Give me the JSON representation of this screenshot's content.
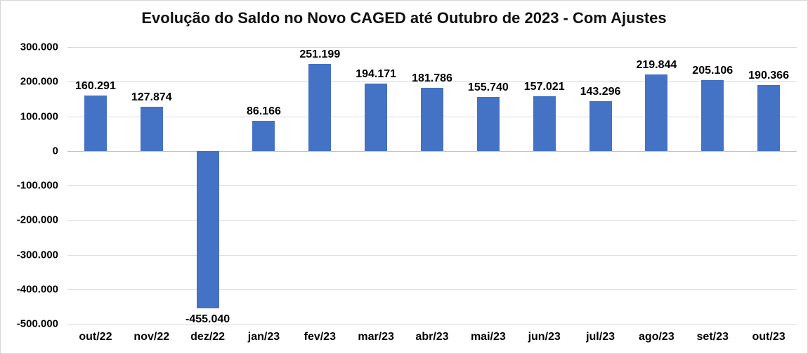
{
  "chart_data": {
    "type": "bar",
    "title": "Evolução do Saldo no Novo CAGED até Outubro de 2023 - Com Ajustes",
    "xlabel": "",
    "ylabel": "",
    "categories": [
      "out/22",
      "nov/22",
      "dez/22",
      "jan/23",
      "fev/23",
      "mar/23",
      "abr/23",
      "mai/23",
      "jun/23",
      "jul/23",
      "ago/23",
      "set/23",
      "out/23"
    ],
    "values": [
      160291,
      127874,
      -455040,
      86166,
      251199,
      194171,
      181786,
      155740,
      157021,
      143296,
      219844,
      205106,
      190366
    ],
    "data_labels": [
      "160.291",
      "127.874",
      "-455.040",
      "86.166",
      "251.199",
      "194.171",
      "181.786",
      "155.740",
      "157.021",
      "143.296",
      "219.844",
      "205.106",
      "190.366"
    ],
    "y_ticks": [
      "300.000",
      "200.000",
      "100.000",
      "0",
      "-100.000",
      "-200.000",
      "-300.000",
      "-400.000",
      "-500.000"
    ],
    "ylim": [
      -500000,
      300000
    ],
    "grid": true,
    "legend": "none",
    "colors": {
      "bar": "#4472c4",
      "gridline": "#d9d9d9",
      "zero_line": "#bfbfbf",
      "text": "#000000"
    }
  }
}
